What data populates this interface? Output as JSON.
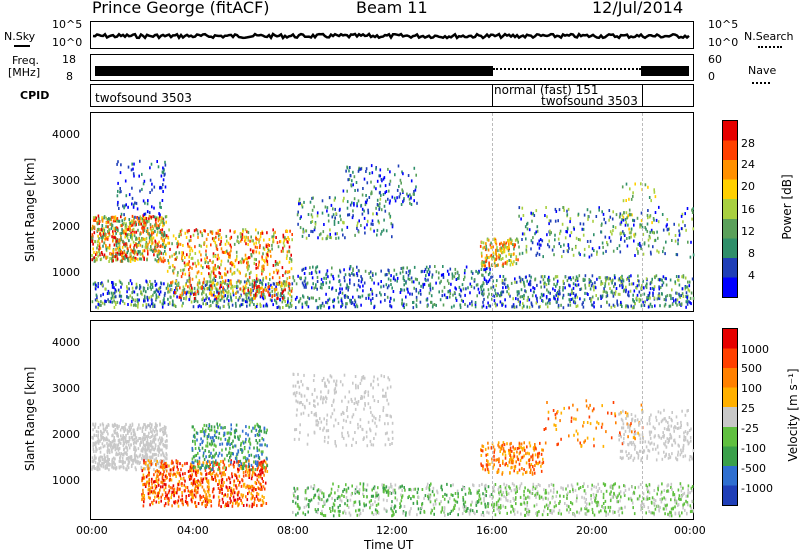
{
  "header": {
    "station": "Prince George (fitACF)",
    "beam": "Beam 11",
    "date": "12/Jul/2014"
  },
  "top_panels": {
    "nsky_label": "N.Sky",
    "nsky_ticks": [
      "10^5",
      "10^0"
    ],
    "nsearch_label": "N.Search",
    "nsearch_ticks": [
      "10^5",
      "10^0"
    ],
    "freq_label_1": "Freq.",
    "freq_label_2": "[MHz]",
    "freq_ticks": [
      "18",
      "8"
    ],
    "nave_label": "Nave",
    "nave_ticks": [
      "60",
      "0"
    ],
    "cpid_label": "CPID",
    "cpid_segments": [
      {
        "label": "twofsound 3503"
      },
      {
        "label": "normal (fast) 151"
      },
      {
        "label": "twofsound 3503"
      }
    ]
  },
  "chart_data": [
    {
      "type": "heatmap",
      "title": "",
      "ylabel": "Slant Range [km]",
      "xlabel": "",
      "ylim": [
        200,
        4500
      ],
      "yticks": [
        "4000",
        "3000",
        "2000",
        "1000"
      ],
      "colorbar_label": "Power [dB]",
      "colorbar_ticks": [
        "28",
        "24",
        "20",
        "16",
        "12",
        "8",
        "4"
      ],
      "colors": [
        "#0000ff",
        "#1f3fb8",
        "#2f8f6a",
        "#5aa05a",
        "#a8d040",
        "#ffd000",
        "#ff9000",
        "#ff4000",
        "#e60000"
      ]
    },
    {
      "type": "heatmap",
      "title": "",
      "ylabel": "Slant Range [km]",
      "xlabel": "Time UT",
      "ylim": [
        200,
        4500
      ],
      "yticks": [
        "4000",
        "3000",
        "2000",
        "1000"
      ],
      "xticks": [
        "00:00",
        "04:00",
        "08:00",
        "12:00",
        "16:00",
        "20:00",
        "00:00"
      ],
      "colorbar_label": "Velocity [m s⁻¹]",
      "colorbar_ticks": [
        "1000",
        "500",
        "100",
        "25",
        "-25",
        "-100",
        "-500",
        "-1000"
      ],
      "colors": [
        "#1f3fb8",
        "#2f6fd0",
        "#3aa04a",
        "#60c040",
        "#c8c8c8",
        "#ffb000",
        "#ff8000",
        "#ff4000",
        "#e60000"
      ]
    }
  ]
}
